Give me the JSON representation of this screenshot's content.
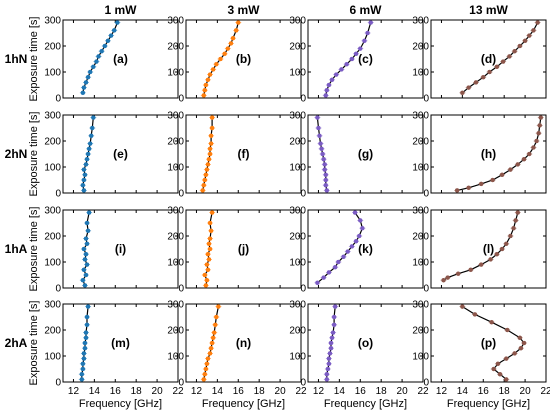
{
  "figure": {
    "columns": [
      "1 mW",
      "3 mW",
      "6 mW",
      "13 mW"
    ],
    "rows": [
      "1hN",
      "2hN",
      "1hA",
      "2hA"
    ],
    "ylabel": "Exposure time [s]",
    "xlabel": "Frequency [GHz]",
    "x_ticks": [
      "12",
      "14",
      "16",
      "18",
      "20",
      "22"
    ],
    "y_ticks": [
      "0",
      "100",
      "200",
      "300"
    ],
    "colors": {
      "1 mW": "#1f77b4",
      "3 mW": "#ff7f0e",
      "6 mW": "#7b5cc4",
      "13 mW": "#8c564b",
      "fit_line": "#000000"
    }
  },
  "chart_data": [
    {
      "type": "scatter",
      "panel": "(a)",
      "row": "1hN",
      "column": "1 mW",
      "xlim": [
        11,
        22
      ],
      "ylim": [
        0,
        300
      ],
      "x": [
        12.9,
        13.0,
        13.2,
        13.4,
        13.6,
        13.9,
        14.2,
        14.4,
        14.7,
        15.0,
        15.3,
        15.6,
        15.9,
        16.2
      ],
      "y": [
        20,
        40,
        60,
        80,
        100,
        120,
        140,
        160,
        180,
        200,
        220,
        240,
        260,
        290
      ]
    },
    {
      "type": "scatter",
      "panel": "(b)",
      "row": "1hN",
      "column": "3 mW",
      "xlim": [
        11,
        22
      ],
      "ylim": [
        0,
        300
      ],
      "x": [
        12.7,
        12.8,
        12.9,
        13.1,
        13.3,
        13.6,
        13.9,
        14.3,
        14.7,
        15.0,
        15.3,
        15.5,
        15.8,
        16.0
      ],
      "y": [
        10,
        30,
        50,
        70,
        90,
        110,
        130,
        150,
        170,
        190,
        210,
        230,
        260,
        290
      ]
    },
    {
      "type": "scatter",
      "panel": "(c)",
      "row": "1hN",
      "column": "6 mW",
      "xlim": [
        11,
        22
      ],
      "ylim": [
        0,
        300
      ],
      "x": [
        12.7,
        12.8,
        13.0,
        13.3,
        13.7,
        14.2,
        14.7,
        15.2,
        15.6,
        16.0,
        16.4,
        16.7,
        17.0
      ],
      "y": [
        10,
        30,
        50,
        70,
        90,
        110,
        130,
        150,
        170,
        190,
        220,
        250,
        290
      ]
    },
    {
      "type": "scatter",
      "panel": "(d)",
      "row": "1hN",
      "column": "13 mW",
      "xlim": [
        11,
        22
      ],
      "ylim": [
        0,
        300
      ],
      "x": [
        14.0,
        14.6,
        15.3,
        16.0,
        16.6,
        17.3,
        17.9,
        18.5,
        19.0,
        19.5,
        20.0,
        20.4,
        20.8,
        21.2
      ],
      "y": [
        20,
        40,
        60,
        80,
        100,
        120,
        140,
        160,
        180,
        200,
        220,
        240,
        260,
        290
      ]
    },
    {
      "type": "scatter",
      "panel": "(e)",
      "row": "2hN",
      "column": "1 mW",
      "xlim": [
        11,
        22
      ],
      "ylim": [
        0,
        300
      ],
      "x": [
        13.0,
        12.9,
        13.0,
        13.1,
        13.0,
        13.2,
        13.3,
        13.4,
        13.5,
        13.6,
        13.7,
        13.8,
        13.9
      ],
      "y": [
        10,
        30,
        50,
        70,
        90,
        110,
        130,
        150,
        170,
        190,
        220,
        250,
        290
      ]
    },
    {
      "type": "scatter",
      "panel": "(f)",
      "row": "2hN",
      "column": "3 mW",
      "xlim": [
        11,
        22
      ],
      "ylim": [
        0,
        300
      ],
      "x": [
        12.6,
        12.7,
        12.8,
        12.9,
        13.0,
        13.1,
        13.2,
        13.3,
        13.3,
        13.4,
        13.4,
        13.5,
        13.5
      ],
      "y": [
        10,
        30,
        50,
        70,
        90,
        110,
        130,
        150,
        170,
        190,
        220,
        250,
        290
      ]
    },
    {
      "type": "scatter",
      "panel": "(g)",
      "row": "2hN",
      "column": "6 mW",
      "xlim": [
        11,
        22
      ],
      "ylim": [
        0,
        300
      ],
      "x": [
        12.8,
        12.7,
        12.7,
        12.7,
        12.6,
        12.6,
        12.5,
        12.4,
        12.3,
        12.2,
        12.1,
        12.0,
        11.9
      ],
      "y": [
        10,
        30,
        50,
        70,
        90,
        110,
        130,
        150,
        170,
        190,
        220,
        250,
        290
      ]
    },
    {
      "type": "scatter",
      "panel": "(h)",
      "row": "2hN",
      "column": "13 mW",
      "xlim": [
        11,
        22
      ],
      "ylim": [
        0,
        300
      ],
      "x": [
        13.5,
        14.6,
        15.8,
        16.9,
        17.8,
        18.6,
        19.3,
        19.9,
        20.4,
        20.8,
        21.1,
        21.3,
        21.4,
        21.5
      ],
      "y": [
        10,
        20,
        35,
        50,
        70,
        90,
        110,
        130,
        150,
        175,
        200,
        230,
        260,
        290
      ]
    },
    {
      "type": "scatter",
      "panel": "(i)",
      "row": "1hA",
      "column": "1 mW",
      "xlim": [
        11,
        22
      ],
      "ylim": [
        0,
        300
      ],
      "x": [
        13.1,
        12.9,
        13.2,
        13.0,
        13.3,
        13.1,
        13.2,
        13.0,
        13.3,
        13.2,
        13.4,
        13.3,
        13.5
      ],
      "y": [
        10,
        30,
        50,
        70,
        90,
        110,
        130,
        150,
        170,
        190,
        220,
        250,
        290
      ]
    },
    {
      "type": "scatter",
      "panel": "(j)",
      "row": "1hA",
      "column": "3 mW",
      "xlim": [
        11,
        22
      ],
      "ylim": [
        0,
        300
      ],
      "x": [
        12.9,
        13.0,
        12.8,
        13.1,
        13.0,
        13.2,
        13.1,
        13.3,
        13.2,
        13.3,
        13.4,
        13.3,
        13.5
      ],
      "y": [
        10,
        30,
        50,
        70,
        90,
        110,
        130,
        150,
        170,
        190,
        220,
        250,
        290
      ]
    },
    {
      "type": "scatter",
      "panel": "(k)",
      "row": "1hA",
      "column": "6 mW",
      "xlim": [
        11,
        22
      ],
      "ylim": [
        0,
        300
      ],
      "x": [
        11.9,
        12.5,
        13.0,
        13.6,
        13.9,
        14.4,
        14.8,
        15.2,
        15.6,
        15.9,
        16.2,
        16.0,
        15.5
      ],
      "y": [
        20,
        40,
        60,
        80,
        100,
        120,
        140,
        160,
        180,
        200,
        230,
        260,
        290
      ]
    },
    {
      "type": "scatter",
      "panel": "(l)",
      "row": "1hA",
      "column": "13 mW",
      "xlim": [
        11,
        22
      ],
      "ylim": [
        0,
        300
      ],
      "x": [
        12.2,
        12.6,
        13.6,
        14.8,
        15.8,
        16.7,
        17.3,
        17.8,
        18.2,
        18.6,
        18.9,
        19.1,
        19.3
      ],
      "y": [
        30,
        40,
        55,
        70,
        90,
        110,
        130,
        150,
        170,
        200,
        230,
        260,
        290
      ]
    },
    {
      "type": "scatter",
      "panel": "(m)",
      "row": "2hA",
      "column": "1 mW",
      "xlim": [
        11,
        22
      ],
      "ylim": [
        0,
        300
      ],
      "x": [
        12.8,
        12.8,
        12.9,
        12.9,
        13.0,
        13.0,
        13.1,
        13.1,
        13.2,
        13.2,
        13.3,
        13.3,
        13.4
      ],
      "y": [
        10,
        30,
        50,
        70,
        90,
        110,
        130,
        150,
        170,
        190,
        220,
        250,
        290
      ]
    },
    {
      "type": "scatter",
      "panel": "(n)",
      "row": "2hA",
      "column": "3 mW",
      "xlim": [
        11,
        22
      ],
      "ylim": [
        0,
        300
      ],
      "x": [
        12.7,
        12.8,
        12.9,
        13.0,
        13.1,
        13.3,
        13.4,
        13.5,
        13.6,
        13.7,
        13.8,
        13.9,
        14.1
      ],
      "y": [
        10,
        30,
        50,
        70,
        90,
        110,
        130,
        150,
        170,
        190,
        220,
        250,
        290
      ]
    },
    {
      "type": "scatter",
      "panel": "(o)",
      "row": "2hA",
      "column": "6 mW",
      "xlim": [
        11,
        22
      ],
      "ylim": [
        0,
        300
      ],
      "x": [
        12.8,
        12.8,
        12.9,
        13.0,
        13.0,
        13.1,
        13.2,
        13.2,
        13.3,
        13.4,
        13.5,
        13.5,
        13.6
      ],
      "y": [
        10,
        30,
        50,
        70,
        90,
        110,
        130,
        150,
        170,
        190,
        220,
        250,
        290
      ]
    },
    {
      "type": "scatter",
      "panel": "(p)",
      "row": "2hA",
      "column": "13 mW",
      "xlim": [
        11,
        22
      ],
      "ylim": [
        0,
        300
      ],
      "x": [
        18.2,
        17.6,
        17.0,
        17.4,
        18.2,
        19.0,
        19.6,
        19.9,
        19.5,
        18.3,
        16.8,
        15.2,
        14.0
      ],
      "y": [
        10,
        30,
        50,
        70,
        90,
        110,
        130,
        150,
        170,
        200,
        230,
        260,
        290
      ]
    }
  ]
}
